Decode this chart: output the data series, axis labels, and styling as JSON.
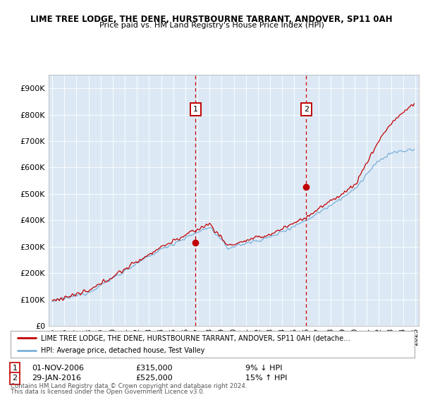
{
  "title1": "LIME TREE LODGE, THE DENE, HURSTBOURNE TARRANT, ANDOVER, SP11 0AH",
  "title2": "Price paid vs. HM Land Registry's House Price Index (HPI)",
  "ylabel_ticks": [
    "£0",
    "£100K",
    "£200K",
    "£300K",
    "£400K",
    "£500K",
    "£600K",
    "£700K",
    "£800K",
    "£900K"
  ],
  "yvalues": [
    0,
    100000,
    200000,
    300000,
    400000,
    500000,
    600000,
    700000,
    800000,
    900000
  ],
  "ylim": [
    0,
    950000
  ],
  "sale1_price": 315000,
  "sale2_price": 525000,
  "hpi_color": "#7ab0d8",
  "price_color": "#c00000",
  "vline_color": "#cc0000",
  "bg_color": "#dce9f5",
  "legend_label1": "LIME TREE LODGE, THE DENE, HURSTBOURNE TARRANT, ANDOVER, SP11 0AH (detache…",
  "legend_label2": "HPI: Average price, detached house, Test Valley",
  "footer1": "Contains HM Land Registry data © Crown copyright and database right 2024.",
  "footer2": "This data is licensed under the Open Government Licence v3.0.",
  "x_start_year": 1995,
  "x_end_year": 2025
}
